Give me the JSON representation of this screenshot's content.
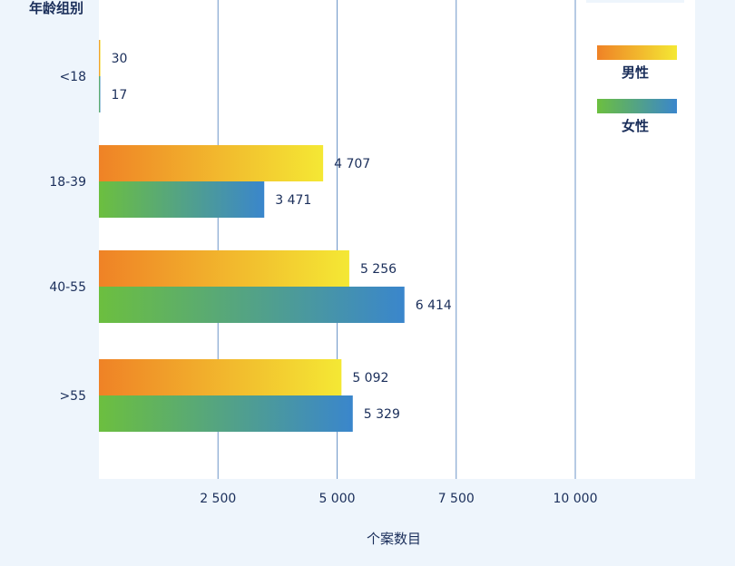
{
  "chart_data": {
    "type": "bar",
    "orientation": "horizontal",
    "ylabel": "年龄组别",
    "xlabel": "个案数目",
    "categories": [
      "<18",
      "18-39",
      "40-55",
      ">55"
    ],
    "series": [
      {
        "name": "男性",
        "values": [
          30,
          4707,
          5256,
          5092
        ],
        "labels": [
          "30",
          "4 707",
          "5 256",
          "5 092"
        ],
        "colors": [
          "#ef8226",
          "#f4e834"
        ]
      },
      {
        "name": "女性",
        "values": [
          17,
          3471,
          6414,
          5329
        ],
        "labels": [
          "17",
          "3 471",
          "6 414",
          "5 329"
        ],
        "colors": [
          "#6cbf3f",
          "#3a86cc"
        ]
      }
    ],
    "xticks": [
      2500,
      5000,
      7500,
      10000
    ],
    "xtick_labels": [
      "2 500",
      "5 000",
      "7 500",
      "10  000"
    ],
    "xlim": [
      0,
      12500
    ],
    "grid": "vertical",
    "legend_position": "top-right"
  }
}
